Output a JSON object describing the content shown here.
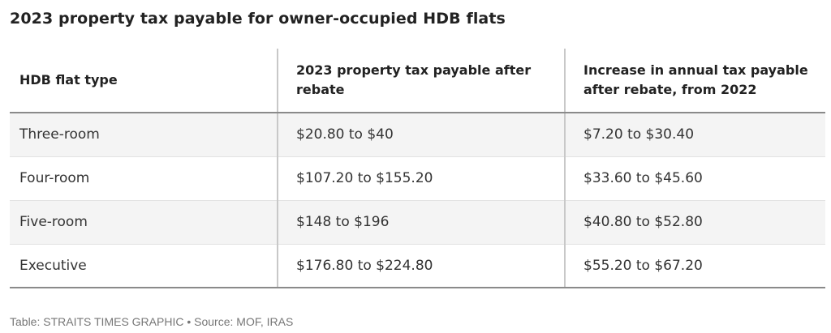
{
  "title": "2023 property tax payable for owner-occupied HDB flats",
  "table": {
    "headers": [
      "HDB flat type",
      "2023 property tax payable after rebate",
      "Increase in annual tax payable after rebate, from 2022"
    ],
    "rows": [
      [
        "Three-room",
        "$20.80 to $40",
        "$7.20 to $30.40"
      ],
      [
        "Four-room",
        "$107.20 to $155.20",
        "$33.60 to $45.60"
      ],
      [
        "Five-room",
        "$148 to $196",
        "$40.80 to $52.80"
      ],
      [
        "Executive",
        "$176.80 to $224.80",
        "$55.20 to $67.20"
      ]
    ]
  },
  "footer": "Table: STRAITS TIMES GRAPHIC • Source: MOF, IRAS",
  "colors": {
    "row_shade": "#f4f4f4",
    "rule": "#8a8a8a",
    "divider": "#c8c8c8",
    "footer_text": "#777777"
  }
}
